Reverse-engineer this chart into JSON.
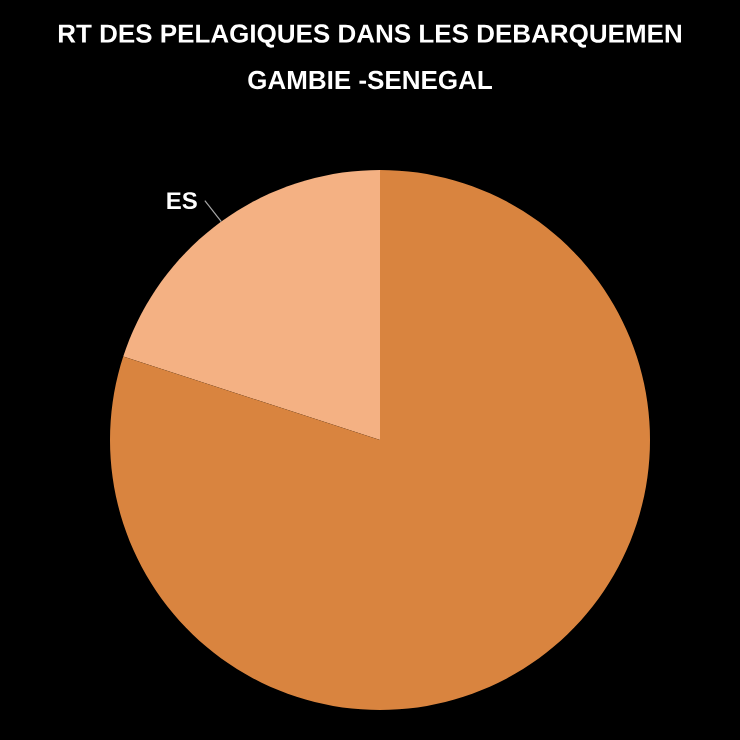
{
  "chart_data": {
    "type": "pie",
    "title": "RT DES PELAGIQUES DANS LES DEBARQUEMEN",
    "subtitle": "GAMBIE -SENEGAL",
    "categories": [
      "ES",
      null
    ],
    "values": [
      20,
      80
    ],
    "colors": [
      "#f4b183",
      "#d9843f"
    ]
  }
}
